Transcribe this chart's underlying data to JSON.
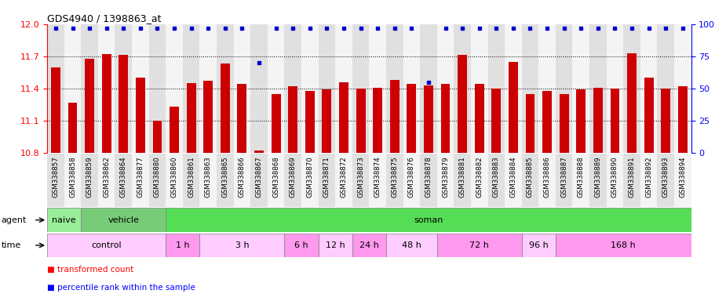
{
  "title": "GDS4940 / 1398863_at",
  "samples": [
    "GSM338857",
    "GSM338858",
    "GSM338859",
    "GSM338862",
    "GSM338864",
    "GSM338877",
    "GSM338880",
    "GSM338860",
    "GSM338861",
    "GSM338863",
    "GSM338865",
    "GSM338866",
    "GSM338867",
    "GSM338868",
    "GSM338869",
    "GSM338870",
    "GSM338871",
    "GSM338872",
    "GSM338873",
    "GSM338874",
    "GSM338875",
    "GSM338876",
    "GSM338878",
    "GSM338879",
    "GSM338881",
    "GSM338882",
    "GSM338883",
    "GSM338884",
    "GSM338885",
    "GSM338886",
    "GSM338887",
    "GSM338888",
    "GSM338889",
    "GSM338890",
    "GSM338891",
    "GSM338892",
    "GSM338893",
    "GSM338894"
  ],
  "bar_values": [
    11.6,
    11.27,
    11.68,
    11.72,
    11.71,
    11.5,
    11.1,
    11.23,
    11.45,
    11.47,
    11.63,
    11.44,
    10.82,
    11.35,
    11.42,
    11.38,
    11.39,
    11.46,
    11.4,
    11.41,
    11.48,
    11.44,
    11.43,
    11.44,
    11.71,
    11.44,
    11.4,
    11.65,
    11.35,
    11.38,
    11.35,
    11.39,
    11.41,
    11.4,
    11.73,
    11.5,
    11.4,
    11.42
  ],
  "percentile_values": [
    97,
    97,
    97,
    97,
    97,
    97,
    97,
    97,
    97,
    97,
    97,
    97,
    70,
    97,
    97,
    97,
    97,
    97,
    97,
    97,
    97,
    97,
    55,
    97,
    97,
    97,
    97,
    97,
    97,
    97,
    97,
    97,
    97,
    97,
    97,
    97,
    97,
    97
  ],
  "bar_color": "#cc0000",
  "percentile_color": "#0000cc",
  "ylim_left": [
    10.8,
    12.0
  ],
  "ylim_right": [
    0,
    100
  ],
  "yticks_left": [
    10.8,
    11.1,
    11.4,
    11.7,
    12.0
  ],
  "yticks_right": [
    0,
    25,
    50,
    75,
    100
  ],
  "dotted_lines": [
    11.1,
    11.4,
    11.7
  ],
  "agent_group_data": [
    {
      "label": "naive",
      "start": 0,
      "end": 2,
      "color": "#99ee99"
    },
    {
      "label": "vehicle",
      "start": 2,
      "end": 7,
      "color": "#77cc77"
    },
    {
      "label": "soman",
      "start": 7,
      "end": 38,
      "color": "#55dd55"
    }
  ],
  "time_group_data": [
    {
      "label": "control",
      "start": 0,
      "end": 7,
      "color": "#ffccff"
    },
    {
      "label": "1 h",
      "start": 7,
      "end": 9,
      "color": "#ff99ee"
    },
    {
      "label": "3 h",
      "start": 9,
      "end": 14,
      "color": "#ffccff"
    },
    {
      "label": "6 h",
      "start": 14,
      "end": 16,
      "color": "#ff99ee"
    },
    {
      "label": "12 h",
      "start": 16,
      "end": 18,
      "color": "#ffccff"
    },
    {
      "label": "24 h",
      "start": 18,
      "end": 20,
      "color": "#ff99ee"
    },
    {
      "label": "48 h",
      "start": 20,
      "end": 23,
      "color": "#ffccff"
    },
    {
      "label": "72 h",
      "start": 23,
      "end": 28,
      "color": "#ff99ee"
    },
    {
      "label": "96 h",
      "start": 28,
      "end": 30,
      "color": "#ffccff"
    },
    {
      "label": "168 h",
      "start": 30,
      "end": 38,
      "color": "#ff99ee"
    }
  ],
  "tick_label_size": 6.2,
  "col_bg_even": "#e0e0e0",
  "col_bg_odd": "#f4f4f4"
}
